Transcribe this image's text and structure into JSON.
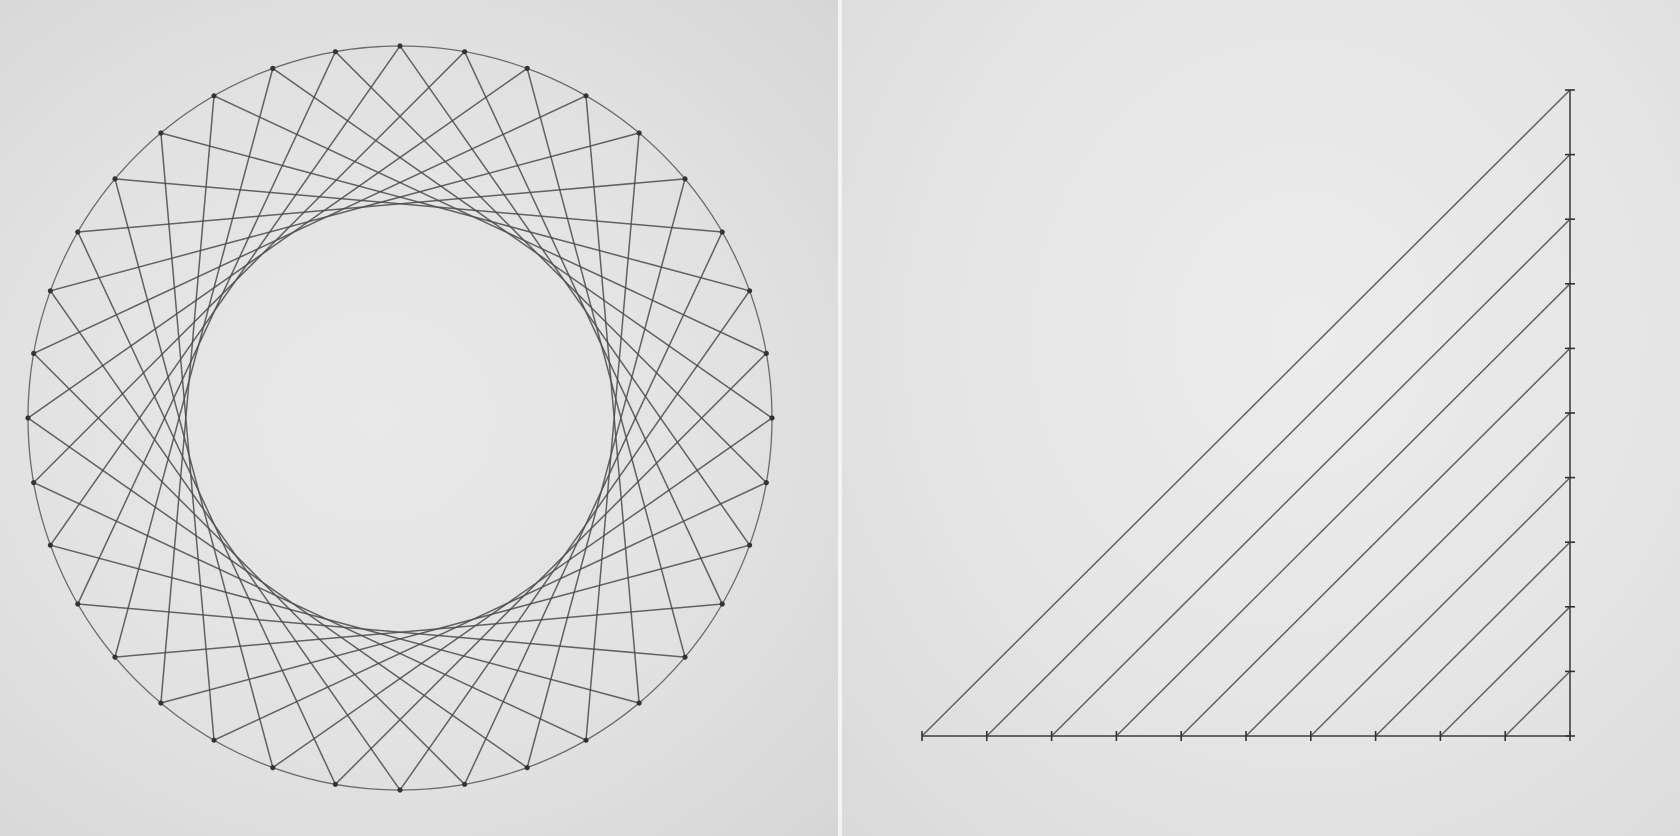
{
  "photos": [
    {
      "subject": "pencil-string-art-circle",
      "ring_points": 36,
      "chord_skip": 11,
      "pencil_color": "#4a4a4a"
    },
    {
      "subject": "pencil-string-art-curve",
      "points_per_axis": 10,
      "pencil_color": "#4a4a4a"
    }
  ]
}
